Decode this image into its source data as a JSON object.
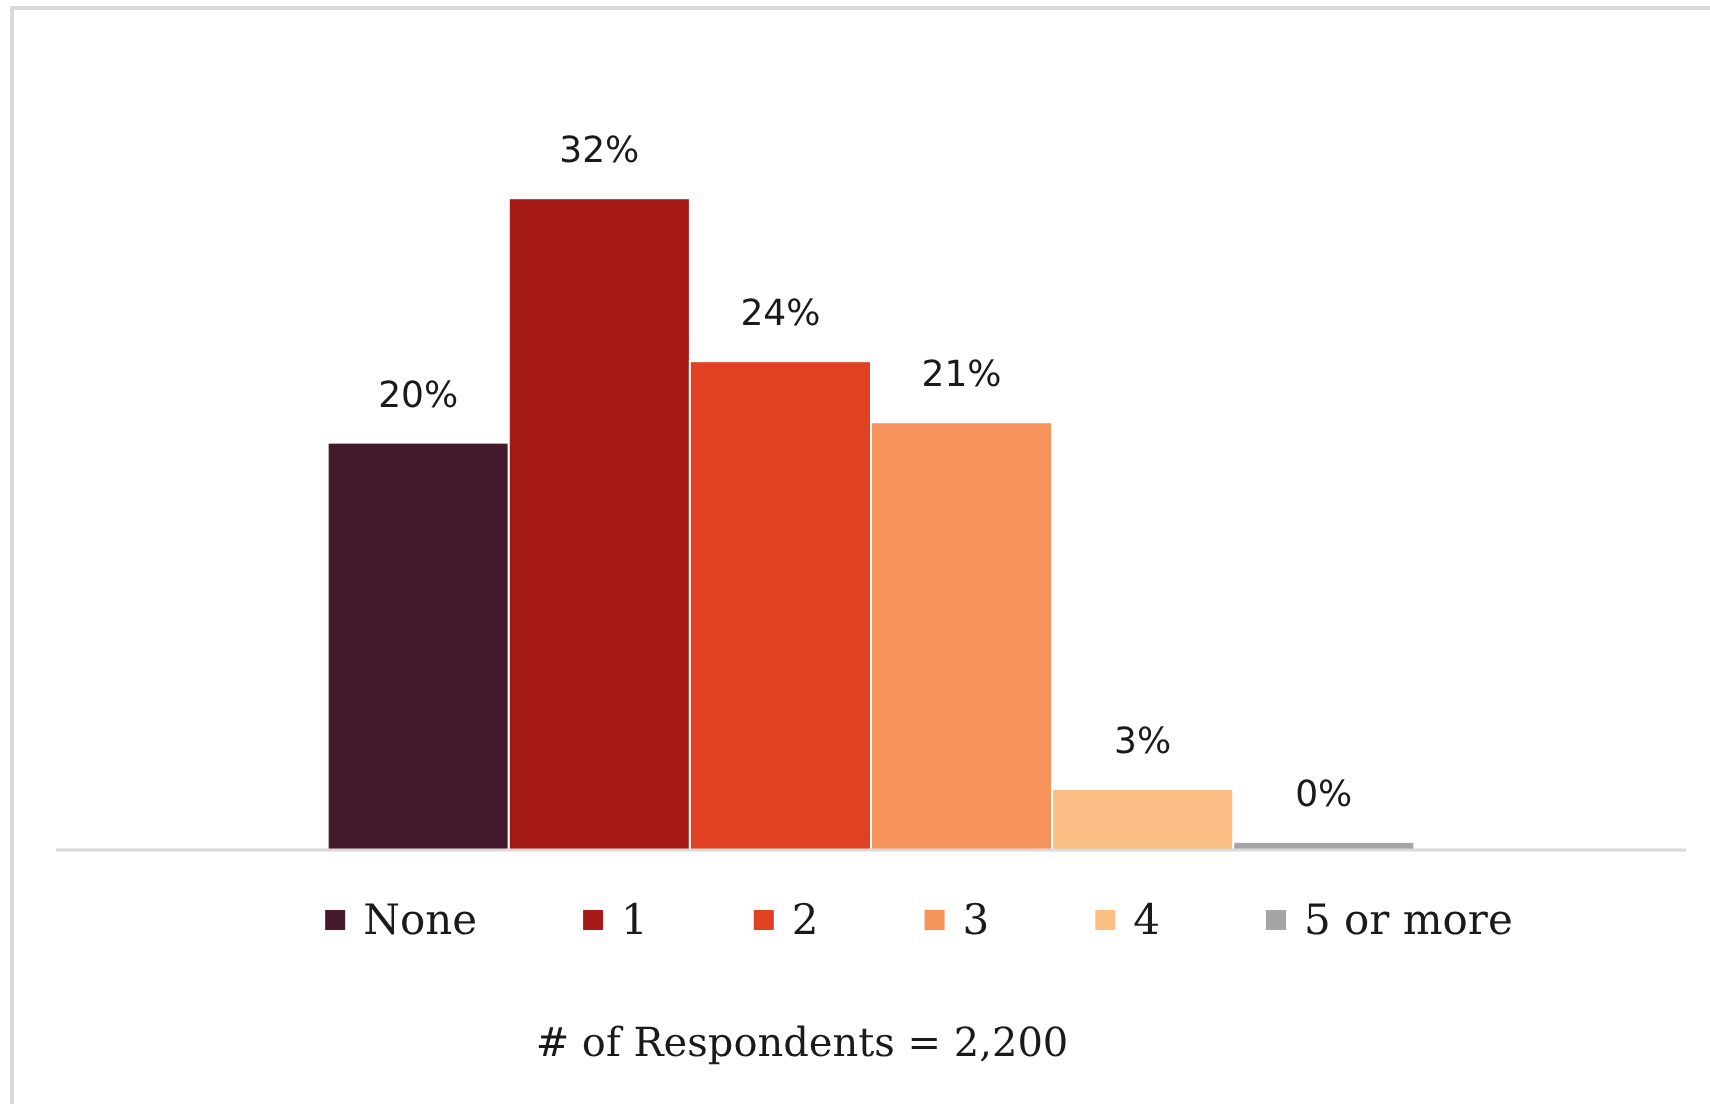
{
  "chart_data": {
    "type": "bar",
    "categories": [
      null
    ],
    "series": [
      {
        "name": "None",
        "color": "#431a2b",
        "values": [
          20
        ],
        "value_labels": [
          "20%"
        ]
      },
      {
        "name": "1",
        "color": "#a51a15",
        "values": [
          32
        ],
        "value_labels": [
          "32%"
        ]
      },
      {
        "name": "2",
        "color": "#e04122",
        "values": [
          24
        ],
        "value_labels": [
          "24%"
        ]
      },
      {
        "name": "3",
        "color": "#f5935a",
        "values": [
          21
        ],
        "value_labels": [
          "21%"
        ]
      },
      {
        "name": "4",
        "color": "#fbbf85",
        "values": [
          3
        ],
        "value_labels": [
          "3%"
        ]
      },
      {
        "name": "5 or more",
        "color": "#a5a5a5",
        "values": [
          0.4
        ],
        "value_labels": [
          "0%"
        ]
      }
    ],
    "legend": "bottom",
    "annotations": [
      "# of Respondents = 2,200"
    ]
  }
}
